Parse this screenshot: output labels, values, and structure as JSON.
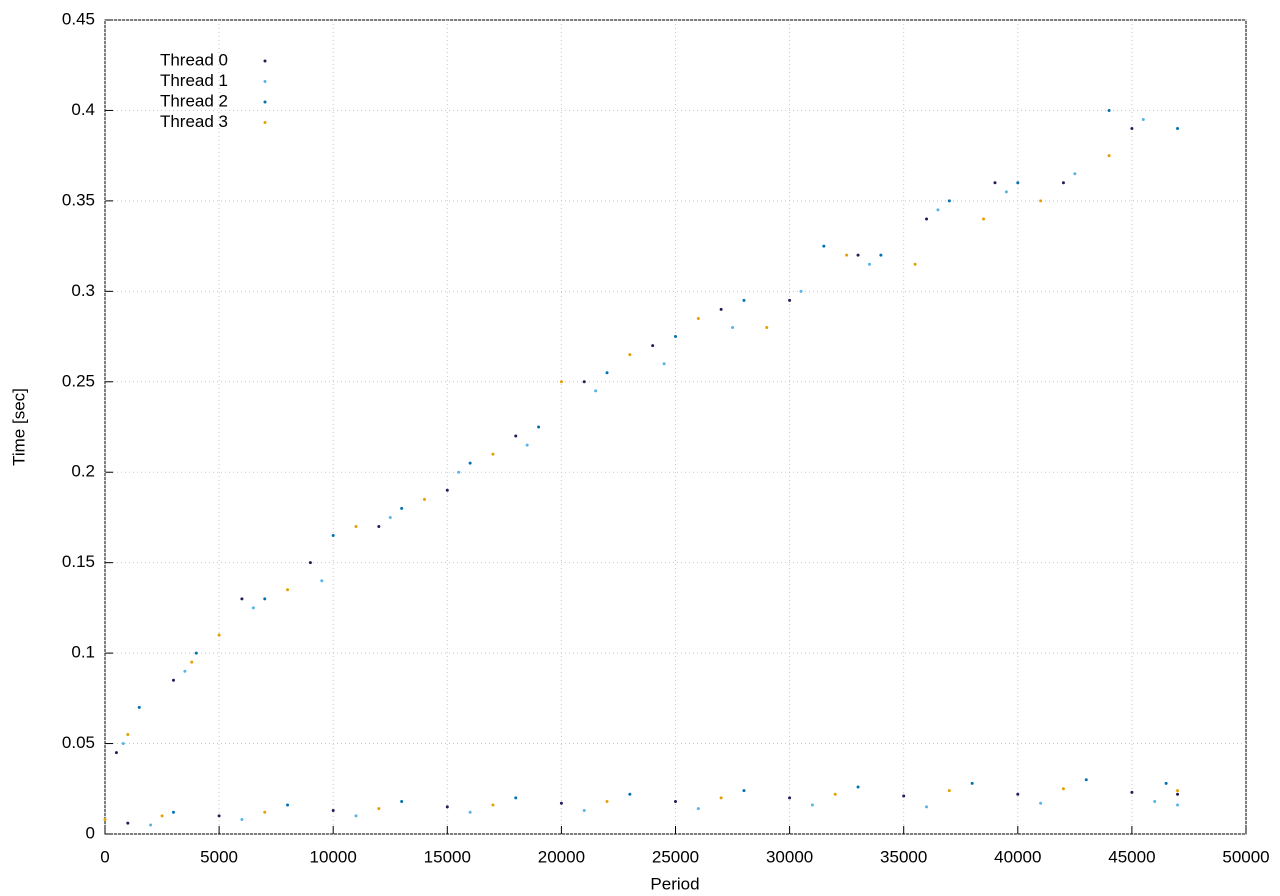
{
  "chart_data": {
    "type": "scatter",
    "xlabel": "Period",
    "ylabel": "Time [sec]",
    "xlim": [
      0,
      50000
    ],
    "xticks": [
      0,
      5000,
      10000,
      15000,
      20000,
      25000,
      30000,
      35000,
      40000,
      45000,
      50000
    ],
    "ylim": [
      0,
      0.45
    ],
    "yticks": [
      0,
      0.05,
      0.1,
      0.15,
      0.2,
      0.25,
      0.3,
      0.35,
      0.4,
      0.45
    ],
    "grid": true,
    "legend": "top-left",
    "series": [
      {
        "name": "Thread 0",
        "color": "#1f1f5a",
        "x": [
          500,
          3000,
          6000,
          9000,
          12000,
          15000,
          18000,
          21000,
          24000,
          27000,
          30000,
          33000,
          36000,
          39000,
          42000,
          45000,
          1000,
          5000,
          10000,
          15000,
          20000,
          25000,
          30000,
          35000,
          40000,
          45000,
          47000
        ],
        "values": [
          0.045,
          0.085,
          0.13,
          0.15,
          0.17,
          0.19,
          0.22,
          0.25,
          0.27,
          0.29,
          0.295,
          0.32,
          0.34,
          0.36,
          0.36,
          0.39,
          0.006,
          0.01,
          0.013,
          0.015,
          0.017,
          0.018,
          0.02,
          0.021,
          0.022,
          0.023,
          0.022
        ]
      },
      {
        "name": "Thread 1",
        "color": "#56b4e9",
        "x": [
          800,
          3500,
          6500,
          9500,
          12500,
          15500,
          18500,
          21500,
          24500,
          27500,
          30500,
          33500,
          36500,
          39500,
          42500,
          45500,
          2000,
          6000,
          11000,
          16000,
          21000,
          26000,
          31000,
          36000,
          41000,
          46000,
          47000
        ],
        "values": [
          0.05,
          0.09,
          0.125,
          0.14,
          0.175,
          0.2,
          0.215,
          0.245,
          0.26,
          0.28,
          0.3,
          0.315,
          0.345,
          0.355,
          0.365,
          0.395,
          0.005,
          0.008,
          0.01,
          0.012,
          0.013,
          0.014,
          0.016,
          0.015,
          0.017,
          0.018,
          0.016
        ]
      },
      {
        "name": "Thread 2",
        "color": "#0072b2",
        "x": [
          1500,
          4000,
          7000,
          10000,
          13000,
          16000,
          19000,
          22000,
          25000,
          28000,
          31500,
          34000,
          37000,
          40000,
          44000,
          47000,
          3000,
          8000,
          13000,
          18000,
          23000,
          28000,
          33000,
          38000,
          43000,
          46500
        ],
        "values": [
          0.07,
          0.1,
          0.13,
          0.165,
          0.18,
          0.205,
          0.225,
          0.255,
          0.275,
          0.295,
          0.325,
          0.32,
          0.35,
          0.36,
          0.4,
          0.39,
          0.012,
          0.016,
          0.018,
          0.02,
          0.022,
          0.024,
          0.026,
          0.028,
          0.03,
          0.028
        ]
      },
      {
        "name": "Thread 3",
        "color": "#e69f00",
        "x": [
          1000,
          3800,
          5000,
          8000,
          11000,
          14000,
          17000,
          20000,
          23000,
          26000,
          29000,
          32500,
          35500,
          38500,
          41000,
          44000,
          0,
          2500,
          7000,
          12000,
          17000,
          22000,
          27000,
          32000,
          37000,
          42000,
          47000
        ],
        "values": [
          0.055,
          0.095,
          0.11,
          0.135,
          0.17,
          0.185,
          0.21,
          0.25,
          0.265,
          0.285,
          0.28,
          0.32,
          0.315,
          0.34,
          0.35,
          0.375,
          0.008,
          0.01,
          0.012,
          0.014,
          0.016,
          0.018,
          0.02,
          0.022,
          0.024,
          0.025,
          0.024
        ]
      }
    ]
  }
}
